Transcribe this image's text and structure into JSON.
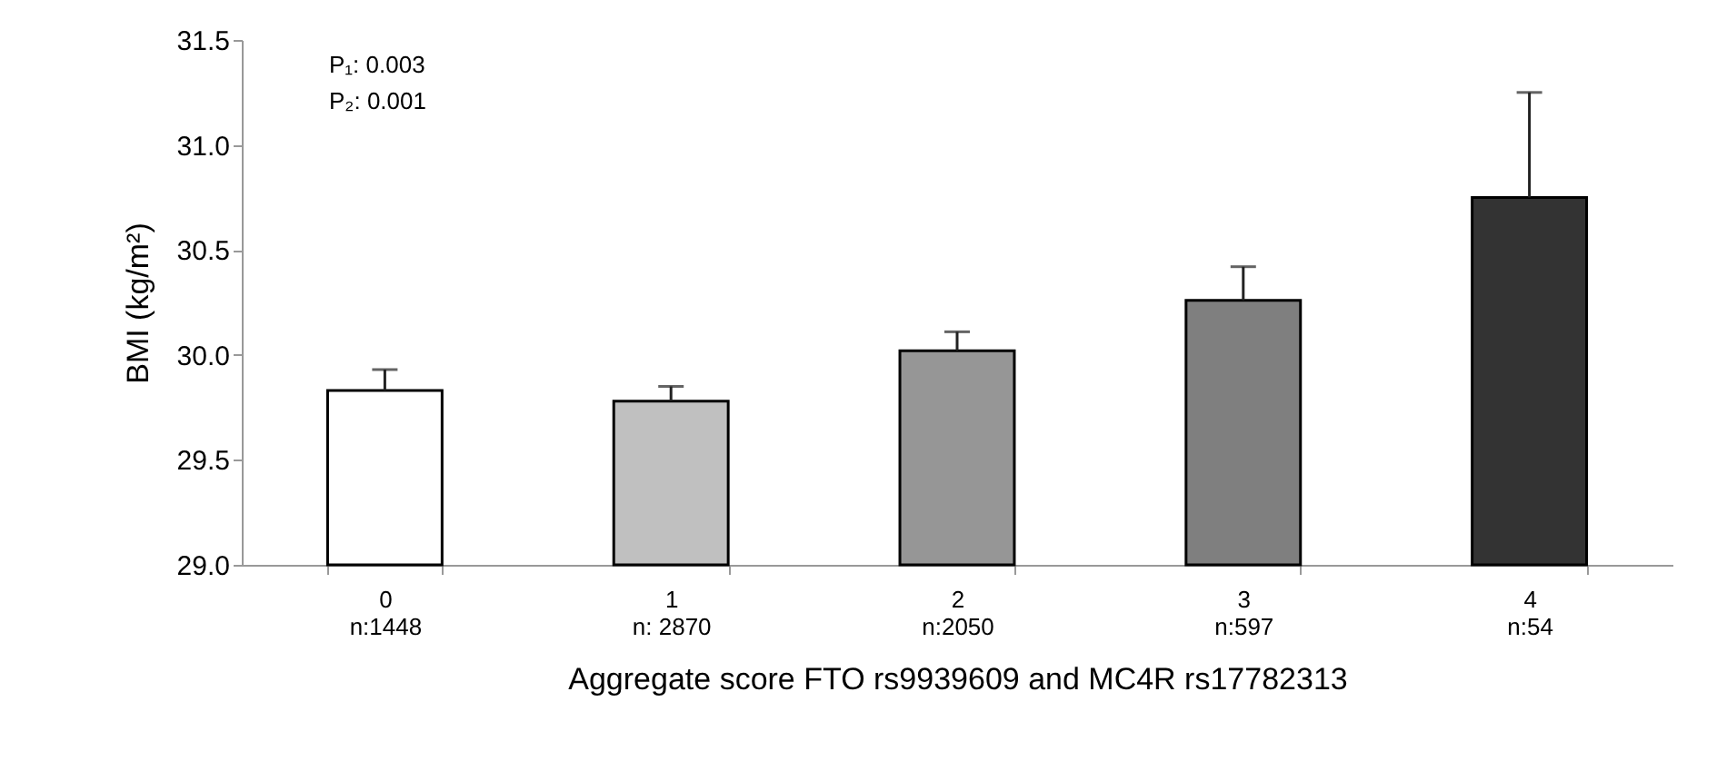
{
  "chart_data": {
    "type": "bar",
    "xlabel": "Aggregate score FTO rs9939609 and MC4R rs17782313",
    "ylabel": "BMI (kg/m²)",
    "categories": [
      "0\nn:1448",
      "1\nn: 2870",
      "2\nn:2050",
      "3\nn:597",
      "4\nn:54"
    ],
    "values": [
      29.83,
      29.78,
      30.02,
      30.26,
      30.75
    ],
    "errors": [
      [
        29.83,
        29.93
      ],
      [
        29.78,
        29.85
      ],
      [
        30.02,
        30.11
      ],
      [
        30.26,
        30.42
      ],
      [
        30.75,
        31.25
      ]
    ],
    "colors": [
      "#ffffff",
      "#c0c0c0",
      "#969696",
      "#7f7f7f",
      "#333333"
    ],
    "ylim": [
      29.0,
      31.5
    ],
    "yticks": [
      {
        "value": 29,
        "label": "29.0"
      },
      29.5,
      {
        "value": 30,
        "label": "30.0"
      },
      30.5,
      {
        "value": 31,
        "label": "31.0"
      },
      31.5
    ],
    "annotations": [
      "P₁: 0.003",
      "P₂: 0.001"
    ],
    "grid": false,
    "legend": false
  }
}
